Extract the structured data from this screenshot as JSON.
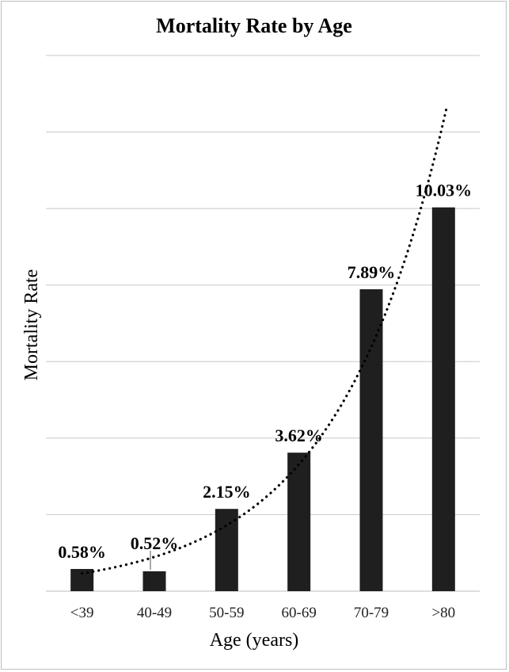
{
  "chart_data": {
    "type": "bar",
    "title": "Mortality Rate by Age",
    "xlabel": "Age (years)",
    "ylabel": "Mortality Rate",
    "categories": [
      "<39",
      "40-49",
      "50-59",
      "60-69",
      "70-79",
      ">80"
    ],
    "values": [
      0.58,
      0.52,
      2.15,
      3.62,
      7.89,
      10.03
    ],
    "data_labels": [
      "0.58%",
      "0.52%",
      "2.15%",
      "3.62%",
      "7.89%",
      "10.03%"
    ],
    "ylim": [
      0,
      14
    ],
    "y_gridline_step": 2,
    "y_tick_labels_shown": false,
    "grid": true,
    "bar_color": "#1f1f1f",
    "gridline_color": "#c8c8c8",
    "trendline": {
      "type": "exponential",
      "style": "dotted",
      "color": "#000000"
    }
  }
}
